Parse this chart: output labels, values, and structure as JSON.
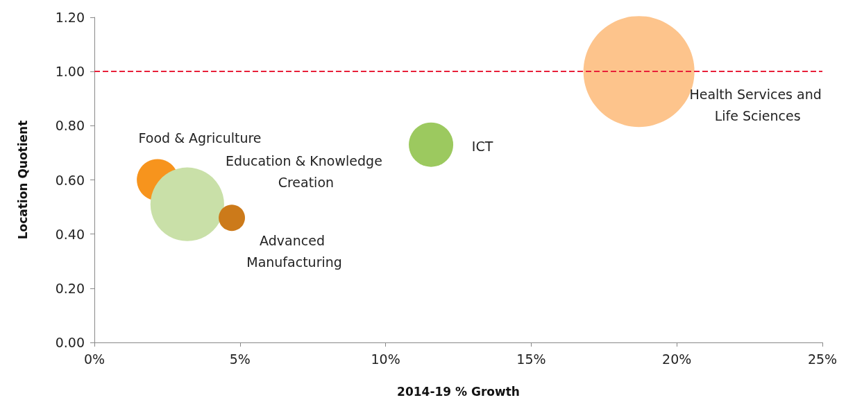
{
  "chart_data": {
    "type": "bubble",
    "xlabel": "2014-19 % Growth",
    "ylabel": "Location Quotient",
    "series": [
      {
        "name": "Food & Agriculture",
        "color": "#f7941d",
        "x": [
          2.17
        ],
        "values": [
          0.6
        ],
        "sizes": [
          0.14
        ]
      },
      {
        "name": "Education & Knowledge Creation",
        "color": "#c9e0a8",
        "x": [
          3.19
        ],
        "values": [
          0.51
        ],
        "sizes": [
          0.44
        ]
      },
      {
        "name": "Advanced Manufacturing",
        "color": "#cc7a1a",
        "x": [
          4.72
        ],
        "values": [
          0.46
        ],
        "sizes": [
          0.056
        ]
      },
      {
        "name": "ICT",
        "color": "#9cc95f",
        "x": [
          11.56
        ],
        "values": [
          0.73
        ],
        "sizes": [
          0.16
        ]
      },
      {
        "name": "Health Services and Life Sciences",
        "color": "#fdc48c",
        "x": [
          18.7
        ],
        "values": [
          1.0
        ],
        "sizes": [
          1
        ]
      }
    ],
    "xlim": [
      0,
      25
    ],
    "xticks": [
      {
        "value": 0,
        "label": "0%"
      },
      {
        "value": 5,
        "label": "5%"
      },
      {
        "value": 10,
        "label": "10%"
      },
      {
        "value": 15,
        "label": "15%"
      },
      {
        "value": 20,
        "label": "20%"
      },
      {
        "value": 25,
        "label": "25%"
      }
    ],
    "ylim": [
      0,
      1.2
    ],
    "yticks": [
      {
        "value": 0,
        "label": "0.00"
      },
      {
        "value": 0.2,
        "label": "0.20"
      },
      {
        "value": 0.4,
        "label": "0.40"
      },
      {
        "value": 0.6,
        "label": "0.60"
      },
      {
        "value": 0.8,
        "label": "0.80"
      },
      {
        "value": 1,
        "label": "1.00"
      },
      {
        "value": 1.2,
        "label": "1.20"
      }
    ],
    "ref_lines": [
      {
        "axis": "y",
        "value": 1.0,
        "color": "#e8203a",
        "line_style": "dashed"
      }
    ],
    "grid": false,
    "legend": false
  }
}
